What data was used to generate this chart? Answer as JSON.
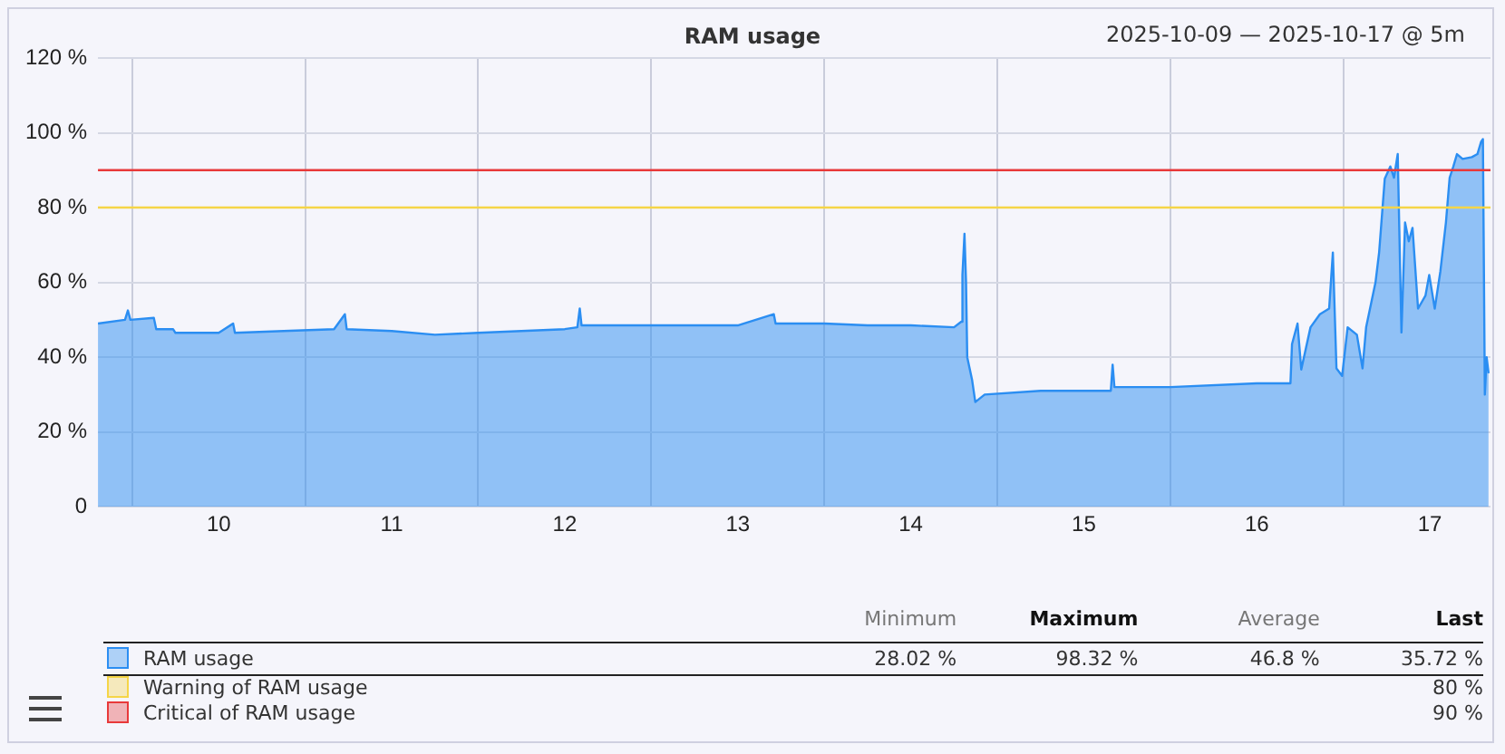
{
  "chart_data": {
    "type": "area",
    "title": "RAM usage",
    "subtitle": "2025-10-09 — 2025-10-17 @ 5m",
    "x": [
      "2025-10-09T07:15",
      "2025-10-09T11:00",
      "2025-10-09T11:24",
      "2025-10-09T11:45",
      "2025-10-09T15:00",
      "2025-10-09T15:20",
      "2025-10-09T17:40",
      "2025-10-09T18:00",
      "2025-10-10T00:00",
      "2025-10-10T02:00",
      "2025-10-10T02:15",
      "2025-10-10T09:00",
      "2025-10-10T16:00",
      "2025-10-10T17:30",
      "2025-10-10T17:45",
      "2025-10-11T00:00",
      "2025-10-11T06:00",
      "2025-10-11T12:00",
      "2025-10-11T18:00",
      "2025-10-12T00:00",
      "2025-10-12T01:45",
      "2025-10-12T02:05",
      "2025-10-12T02:20",
      "2025-10-12T08:00",
      "2025-10-13T00:00",
      "2025-10-13T05:00",
      "2025-10-13T05:15",
      "2025-10-13T12:00",
      "2025-10-13T18:00",
      "2025-10-14T00:00",
      "2025-10-14T06:00",
      "2025-10-14T07:00",
      "2025-10-14T07:10",
      "2025-10-14T07:27",
      "2025-10-14T07:40",
      "2025-10-14T07:50",
      "2025-10-14T08:30",
      "2025-10-14T08:57",
      "2025-10-14T10:15",
      "2025-10-14T18:00",
      "2025-10-15T03:45",
      "2025-10-15T04:00",
      "2025-10-15T04:15",
      "2025-10-15T12:00",
      "2025-10-16T00:00",
      "2025-10-16T04:40",
      "2025-10-16T04:53",
      "2025-10-16T05:39",
      "2025-10-16T06:10",
      "2025-10-16T07:27",
      "2025-10-16T08:45",
      "2025-10-16T10:02",
      "2025-10-16T10:33",
      "2025-10-16T11:03",
      "2025-10-16T11:50",
      "2025-10-16T12:36",
      "2025-10-16T13:53",
      "2025-10-16T14:40",
      "2025-10-16T15:10",
      "2025-10-16T16:28",
      "2025-10-16T16:58",
      "2025-10-16T17:45",
      "2025-10-16T18:31",
      "2025-10-16T19:02",
      "2025-10-16T19:33",
      "2025-10-16T20:04",
      "2025-10-16T20:34",
      "2025-10-16T21:05",
      "2025-10-16T21:36",
      "2025-10-16T22:22",
      "2025-10-16T23:24",
      "2025-10-16T23:55",
      "2025-10-17T00:41",
      "2025-10-17T01:28",
      "2025-10-17T02:14",
      "2025-10-17T02:45",
      "2025-10-17T03:16",
      "2025-10-17T03:46",
      "2025-10-17T04:33",
      "2025-10-17T05:50",
      "2025-10-17T06:36",
      "2025-10-17T07:07",
      "2025-10-17T07:22",
      "2025-10-17T07:38",
      "2025-10-17T07:53",
      "2025-10-17T08:09"
    ],
    "series": [
      {
        "name": "RAM usage",
        "color": "#2b8ef2",
        "values": [
          49,
          50,
          52.5,
          50,
          50.5,
          47.5,
          47.5,
          46.5,
          46.5,
          49,
          46.5,
          47,
          47.5,
          51.5,
          47.5,
          47,
          46,
          46.5,
          47,
          47.5,
          48,
          53,
          48.5,
          48.5,
          48.5,
          51.5,
          49,
          49,
          48.5,
          48.5,
          48,
          49.5,
          62,
          73,
          60,
          40,
          34,
          28.02,
          30,
          31,
          31,
          38,
          32,
          32,
          33,
          33,
          43.5,
          49,
          36.7,
          48,
          51.5,
          53,
          68,
          37,
          35,
          48,
          46,
          37,
          48,
          60,
          68,
          87.7,
          91,
          88,
          94.3,
          46.6,
          76,
          71,
          74.6,
          53,
          56.5,
          62,
          53,
          63,
          76,
          88,
          91,
          94.3,
          93,
          93.5,
          94.3,
          97.6,
          98.32,
          30,
          40,
          35.72
        ]
      }
    ],
    "xlim": [
      "2025-10-09T07:15",
      "2025-10-17T08:25"
    ],
    "xticks": [
      {
        "value": "2025-10-09T12:00",
        "label": null
      },
      {
        "value": "2025-10-10T00:00",
        "label": "10"
      },
      {
        "value": "2025-10-10T12:00",
        "label": null
      },
      {
        "value": "2025-10-11T00:00",
        "label": "11"
      },
      {
        "value": "2025-10-11T12:00",
        "label": null
      },
      {
        "value": "2025-10-12T00:00",
        "label": "12"
      },
      {
        "value": "2025-10-12T12:00",
        "label": null
      },
      {
        "value": "2025-10-13T00:00",
        "label": "13"
      },
      {
        "value": "2025-10-13T12:00",
        "label": null
      },
      {
        "value": "2025-10-14T00:00",
        "label": "14"
      },
      {
        "value": "2025-10-14T12:00",
        "label": null
      },
      {
        "value": "2025-10-15T00:00",
        "label": "15"
      },
      {
        "value": "2025-10-15T12:00",
        "label": null
      },
      {
        "value": "2025-10-16T00:00",
        "label": "16"
      },
      {
        "value": "2025-10-16T12:00",
        "label": null
      },
      {
        "value": "2025-10-17T00:00",
        "label": "17"
      }
    ],
    "ylim": [
      0,
      120
    ],
    "yticks": [
      0,
      {
        "value": 20,
        "label": "20 %"
      },
      {
        "value": 40,
        "label": "40 %"
      },
      {
        "value": 60,
        "label": "60 %"
      },
      {
        "value": 80,
        "label": "80 %"
      },
      {
        "value": 100,
        "label": "100 %"
      },
      {
        "value": 120,
        "label": "120 %"
      }
    ],
    "ref_lines": [
      {
        "axis": "y",
        "value": 80,
        "label": "Warning of RAM usage",
        "color": "#f5d547"
      },
      {
        "axis": "y",
        "value": 90,
        "label": "Critical of RAM usage",
        "color": "#e8393a"
      }
    ],
    "annotations": [
      "Minimum",
      "Maximum",
      "Average",
      "Last",
      "28.02 %",
      "98.32 %",
      "46.8 %",
      "35.72 %",
      "80 %",
      "90 %"
    ],
    "grid": true,
    "legend": "bottom"
  }
}
